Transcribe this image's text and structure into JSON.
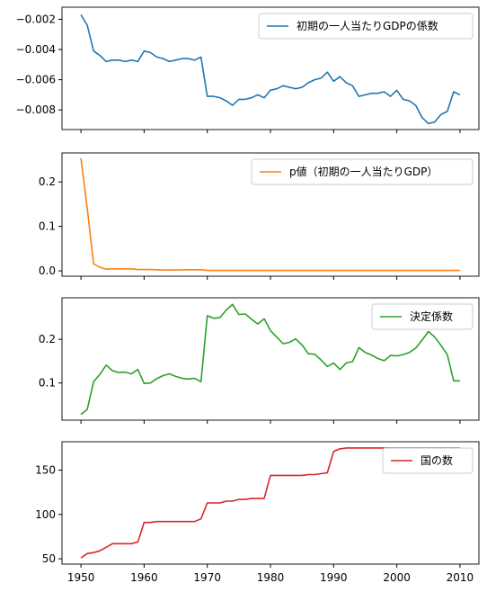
{
  "chart_data": [
    {
      "type": "line",
      "series": [
        {
          "name": "初期の一人当たりGDPの係数",
          "color": "#1f77b4",
          "x": [
            1950,
            1951,
            1952,
            1953,
            1954,
            1955,
            1956,
            1957,
            1958,
            1959,
            1960,
            1961,
            1962,
            1963,
            1964,
            1965,
            1966,
            1967,
            1968,
            1969,
            1970,
            1971,
            1972,
            1973,
            1974,
            1975,
            1976,
            1977,
            1978,
            1979,
            1980,
            1981,
            1982,
            1983,
            1984,
            1985,
            1986,
            1987,
            1988,
            1989,
            1990,
            1991,
            1992,
            1993,
            1994,
            1995,
            1996,
            1997,
            1998,
            1999,
            2000,
            2001,
            2002,
            2003,
            2004,
            2005,
            2006,
            2007,
            2008,
            2009,
            2010
          ],
          "values": [
            -0.0017,
            -0.0024,
            -0.0041,
            -0.0044,
            -0.0048,
            -0.0047,
            -0.0047,
            -0.0048,
            -0.0047,
            -0.0048,
            -0.0041,
            -0.0042,
            -0.0045,
            -0.0046,
            -0.0048,
            -0.0047,
            -0.0046,
            -0.0046,
            -0.0047,
            -0.0045,
            -0.0071,
            -0.0071,
            -0.0072,
            -0.0074,
            -0.0077,
            -0.0073,
            -0.0073,
            -0.0072,
            -0.007,
            -0.0072,
            -0.0067,
            -0.0066,
            -0.0064,
            -0.0065,
            -0.0066,
            -0.0065,
            -0.0062,
            -0.006,
            -0.0059,
            -0.0055,
            -0.0061,
            -0.0058,
            -0.0062,
            -0.0064,
            -0.0071,
            -0.007,
            -0.0069,
            -0.0069,
            -0.0068,
            -0.0071,
            -0.0067,
            -0.0073,
            -0.0074,
            -0.0077,
            -0.0085,
            -0.0089,
            -0.0088,
            -0.0083,
            -0.0081,
            -0.0068,
            -0.007
          ]
        }
      ],
      "ylim": [
        -0.0093,
        -0.0012
      ],
      "yticks": [
        -0.002,
        -0.004,
        -0.006,
        -0.008
      ],
      "ytick_labels": [
        "−0.002",
        "−0.004",
        "−0.006",
        "−0.008"
      ],
      "legend": "top-right"
    },
    {
      "type": "line",
      "series": [
        {
          "name": "p値（初期の一人当たりGDP）",
          "color": "#ff7f0e",
          "x": [
            1950,
            1951,
            1952,
            1953,
            1954,
            1955,
            1956,
            1957,
            1958,
            1959,
            1960,
            1961,
            1962,
            1963,
            1964,
            1965,
            1966,
            1967,
            1968,
            1969,
            1970,
            1971,
            1972,
            1973,
            1974,
            1975,
            1976,
            1977,
            1978,
            1979,
            1980,
            1981,
            1982,
            1983,
            1984,
            1985,
            1986,
            1987,
            1988,
            1989,
            1990,
            1991,
            1992,
            1993,
            1994,
            1995,
            1996,
            1997,
            1998,
            1999,
            2000,
            2001,
            2002,
            2003,
            2004,
            2005,
            2006,
            2007,
            2008,
            2009,
            2010
          ],
          "values": [
            0.253,
            0.14,
            0.016,
            0.008,
            0.004,
            0.0045,
            0.0045,
            0.0045,
            0.0045,
            0.003,
            0.003,
            0.003,
            0.0025,
            0.002,
            0.002,
            0.002,
            0.0022,
            0.0025,
            0.0025,
            0.0025,
            0.001,
            0.001,
            0.001,
            0.001,
            0.001,
            0.001,
            0.001,
            0.001,
            0.001,
            0.001,
            0.001,
            0.001,
            0.001,
            0.001,
            0.001,
            0.001,
            0.001,
            0.001,
            0.001,
            0.001,
            0.001,
            0.001,
            0.001,
            0.001,
            0.001,
            0.001,
            0.001,
            0.001,
            0.001,
            0.001,
            0.001,
            0.001,
            0.001,
            0.001,
            0.001,
            0.001,
            0.001,
            0.001,
            0.001,
            0.001,
            0.001
          ]
        }
      ],
      "ylim": [
        -0.012,
        0.265
      ],
      "yticks": [
        0.0,
        0.1,
        0.2
      ],
      "ytick_labels": [
        "0.0",
        "0.1",
        "0.2"
      ],
      "legend": "top-right"
    },
    {
      "type": "line",
      "series": [
        {
          "name": "決定係数",
          "color": "#2ca02c",
          "x": [
            1950,
            1951,
            1952,
            1953,
            1954,
            1955,
            1956,
            1957,
            1958,
            1959,
            1960,
            1961,
            1962,
            1963,
            1964,
            1965,
            1966,
            1967,
            1968,
            1969,
            1970,
            1971,
            1972,
            1973,
            1974,
            1975,
            1976,
            1977,
            1978,
            1979,
            1980,
            1981,
            1982,
            1983,
            1984,
            1985,
            1986,
            1987,
            1988,
            1989,
            1990,
            1991,
            1992,
            1993,
            1994,
            1995,
            1996,
            1997,
            1998,
            1999,
            2000,
            2001,
            2002,
            2003,
            2004,
            2005,
            2006,
            2007,
            2008,
            2009,
            2010
          ],
          "values": [
            0.028,
            0.04,
            0.103,
            0.12,
            0.141,
            0.128,
            0.124,
            0.125,
            0.121,
            0.131,
            0.099,
            0.1,
            0.11,
            0.117,
            0.121,
            0.115,
            0.111,
            0.109,
            0.111,
            0.103,
            0.254,
            0.248,
            0.25,
            0.267,
            0.28,
            0.257,
            0.258,
            0.246,
            0.235,
            0.247,
            0.22,
            0.205,
            0.19,
            0.193,
            0.201,
            0.187,
            0.167,
            0.166,
            0.153,
            0.138,
            0.146,
            0.131,
            0.146,
            0.149,
            0.181,
            0.17,
            0.164,
            0.156,
            0.151,
            0.163,
            0.162,
            0.165,
            0.17,
            0.18,
            0.198,
            0.218,
            0.205,
            0.186,
            0.165,
            0.105,
            0.105
          ]
        }
      ],
      "ylim": [
        0.015,
        0.295
      ],
      "yticks": [
        0.1,
        0.2
      ],
      "ytick_labels": [
        "0.1",
        "0.2"
      ],
      "legend": "top-right"
    },
    {
      "type": "line",
      "series": [
        {
          "name": "国の数",
          "color": "#d62728",
          "x": [
            1950,
            1951,
            1952,
            1953,
            1954,
            1955,
            1956,
            1957,
            1958,
            1959,
            1960,
            1961,
            1962,
            1963,
            1964,
            1965,
            1966,
            1967,
            1968,
            1969,
            1970,
            1971,
            1972,
            1973,
            1974,
            1975,
            1976,
            1977,
            1978,
            1979,
            1980,
            1981,
            1982,
            1983,
            1984,
            1985,
            1986,
            1987,
            1988,
            1989,
            1990,
            1991,
            1992,
            1993,
            1994,
            1995,
            1996,
            1997,
            1998,
            1999,
            2000,
            2001,
            2002,
            2003,
            2004,
            2005,
            2006,
            2007,
            2008,
            2009,
            2010
          ],
          "values": [
            51,
            56,
            57,
            59,
            63,
            67,
            67,
            67,
            67,
            69,
            91,
            91,
            92,
            92,
            92,
            92,
            92,
            92,
            92,
            95,
            113,
            113,
            113,
            115,
            115,
            117,
            117,
            118,
            118,
            118,
            144,
            144,
            144,
            144,
            144,
            144,
            145,
            145,
            146,
            147,
            171,
            174,
            175,
            175,
            175,
            175,
            175,
            175,
            175,
            175,
            175,
            175,
            175,
            175,
            175,
            175,
            175,
            175,
            175,
            175,
            175
          ]
        }
      ],
      "ylim": [
        44,
        182
      ],
      "yticks": [
        50,
        100,
        150
      ],
      "ytick_labels": [
        "50",
        "100",
        "150"
      ],
      "xticks": [
        1950,
        1960,
        1970,
        1980,
        1990,
        2000,
        2010
      ],
      "xtick_labels": [
        "1950",
        "1960",
        "1970",
        "1980",
        "1990",
        "2000",
        "2010"
      ],
      "legend": "top-right"
    }
  ]
}
